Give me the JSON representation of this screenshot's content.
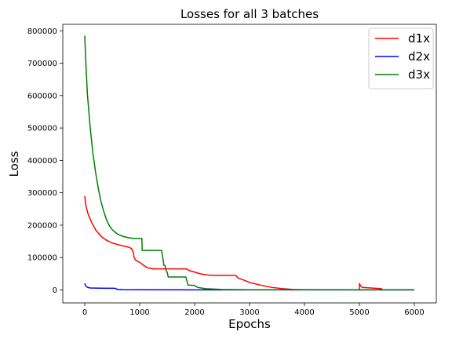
{
  "chart_data": {
    "type": "line",
    "title": "Losses for all 3 batches",
    "xlabel": "Epochs",
    "ylabel": "Loss",
    "xlim": [
      -400,
      6400
    ],
    "ylim": [
      -40000,
      820000
    ],
    "xticks": [
      0,
      1000,
      2000,
      3000,
      4000,
      5000,
      6000
    ],
    "yticks": [
      0,
      100000,
      200000,
      300000,
      400000,
      500000,
      600000,
      700000,
      800000
    ],
    "grid": false,
    "legend_position": "top-right",
    "series": [
      {
        "name": "d1x",
        "color": "#ff0000",
        "points": [
          [
            0,
            290000
          ],
          [
            20,
            260000
          ],
          [
            60,
            235000
          ],
          [
            120,
            210000
          ],
          [
            200,
            185000
          ],
          [
            300,
            165000
          ],
          [
            400,
            153000
          ],
          [
            500,
            145000
          ],
          [
            600,
            140000
          ],
          [
            700,
            136000
          ],
          [
            800,
            132000
          ],
          [
            850,
            128000
          ],
          [
            880,
            118000
          ],
          [
            900,
            100000
          ],
          [
            920,
            93000
          ],
          [
            1000,
            85000
          ],
          [
            1080,
            75000
          ],
          [
            1150,
            68000
          ],
          [
            1250,
            65000
          ],
          [
            1500,
            65000
          ],
          [
            1850,
            65000
          ],
          [
            1900,
            60000
          ],
          [
            2000,
            55000
          ],
          [
            2100,
            50000
          ],
          [
            2200,
            47000
          ],
          [
            2300,
            45000
          ],
          [
            2750,
            45000
          ],
          [
            2790,
            37000
          ],
          [
            2900,
            30000
          ],
          [
            3000,
            23000
          ],
          [
            3200,
            15000
          ],
          [
            3400,
            8000
          ],
          [
            3600,
            4000
          ],
          [
            3800,
            1500
          ],
          [
            4000,
            800
          ],
          [
            5000,
            500
          ],
          [
            5001,
            20000
          ],
          [
            5020,
            13000
          ],
          [
            5050,
            8000
          ],
          [
            5400,
            4000
          ],
          [
            5420,
            800
          ],
          [
            6000,
            500
          ]
        ]
      },
      {
        "name": "d2x",
        "color": "#0000ff",
        "points": [
          [
            0,
            20000
          ],
          [
            20,
            12000
          ],
          [
            50,
            8000
          ],
          [
            100,
            6000
          ],
          [
            300,
            5500
          ],
          [
            550,
            5000
          ],
          [
            600,
            1500
          ],
          [
            700,
            800
          ],
          [
            1000,
            500
          ],
          [
            2000,
            400
          ],
          [
            3000,
            300
          ],
          [
            6000,
            200
          ]
        ]
      },
      {
        "name": "d3x",
        "color": "#008000",
        "points": [
          [
            0,
            785000
          ],
          [
            20,
            700000
          ],
          [
            50,
            600000
          ],
          [
            100,
            500000
          ],
          [
            150,
            420000
          ],
          [
            200,
            360000
          ],
          [
            250,
            310000
          ],
          [
            300,
            270000
          ],
          [
            350,
            240000
          ],
          [
            400,
            215000
          ],
          [
            450,
            198000
          ],
          [
            500,
            186000
          ],
          [
            600,
            172000
          ],
          [
            700,
            165000
          ],
          [
            800,
            161000
          ],
          [
            900,
            159000
          ],
          [
            1040,
            159000
          ],
          [
            1045,
            122000
          ],
          [
            1400,
            122000
          ],
          [
            1420,
            100000
          ],
          [
            1430,
            90000
          ],
          [
            1440,
            76000
          ],
          [
            1460,
            76000
          ],
          [
            1480,
            60000
          ],
          [
            1500,
            55000
          ],
          [
            1520,
            40000
          ],
          [
            1840,
            40000
          ],
          [
            1880,
            15000
          ],
          [
            2000,
            14000
          ],
          [
            2050,
            8000
          ],
          [
            2200,
            4000
          ],
          [
            2500,
            1500
          ],
          [
            3000,
            700
          ],
          [
            6000,
            300
          ]
        ]
      }
    ]
  }
}
